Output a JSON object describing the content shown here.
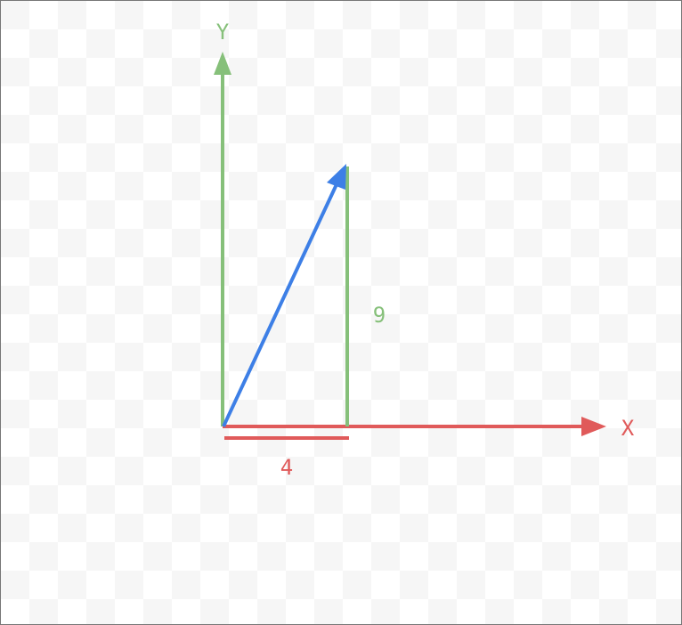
{
  "axes": {
    "x_label": "X",
    "y_label": "Y",
    "x_color": "#e05a5a",
    "y_color": "#86c07a"
  },
  "vector": {
    "color": "#3d7fe6",
    "components": {
      "x": 4,
      "y": 9
    }
  },
  "components": {
    "x_label": "4",
    "y_label": "9",
    "x_color": "#e05a5a",
    "y_color": "#86c07a"
  },
  "background": {
    "style": "checkerboard",
    "light": "#ffffff",
    "dark": "#f6f6f6"
  }
}
